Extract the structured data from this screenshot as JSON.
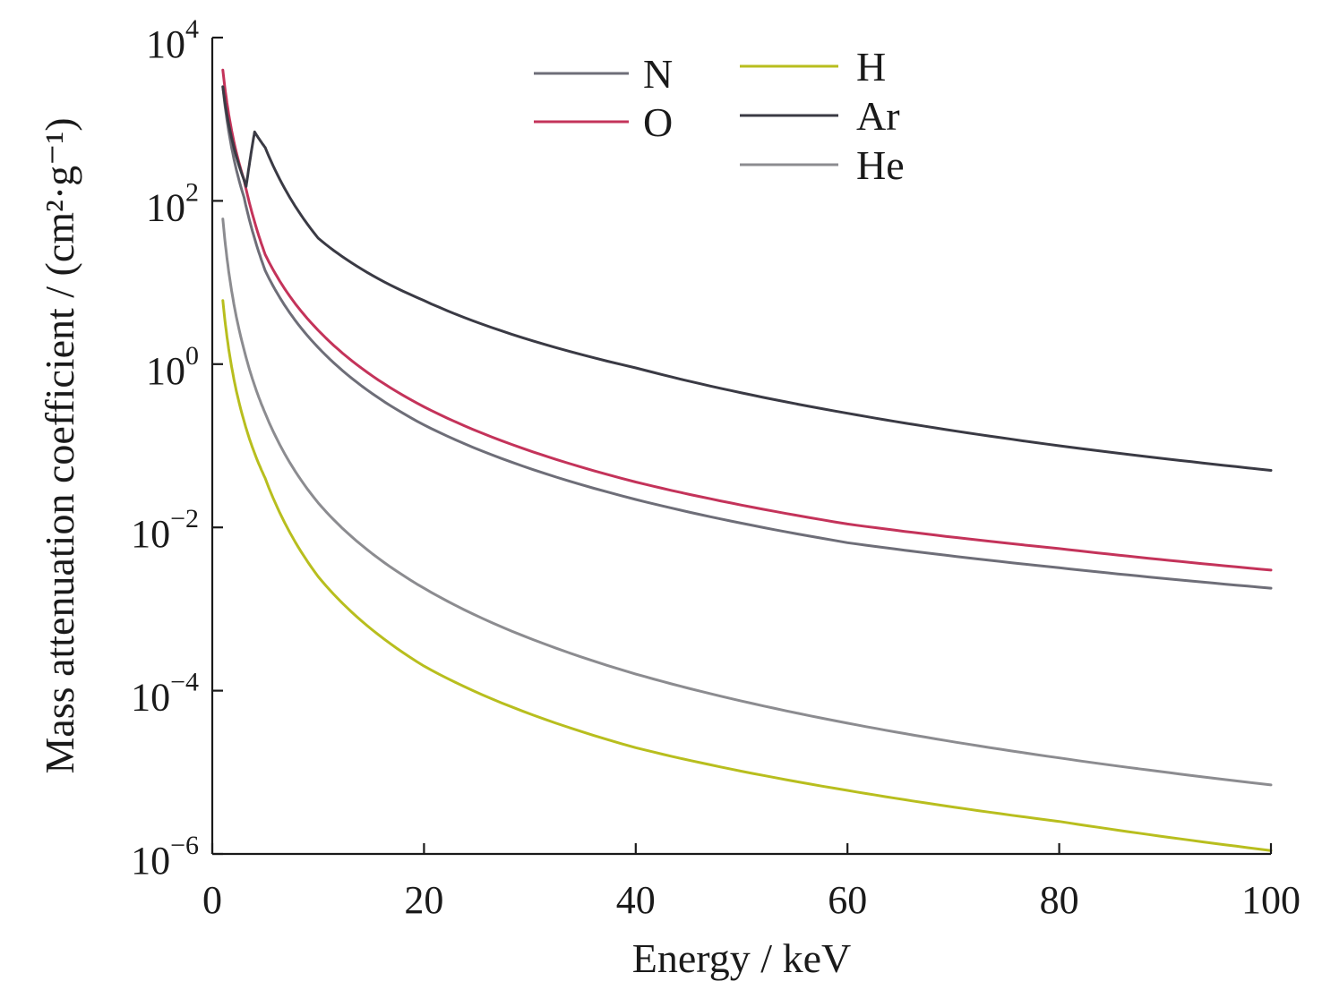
{
  "chart_data": {
    "type": "line",
    "title": "",
    "xlabel": "Energy / keV",
    "ylabel": "Mass attenuation coefficient / (cm²·g⁻¹)",
    "xlim": [
      0,
      100
    ],
    "ylim": [
      1e-06,
      10000.0
    ],
    "yscale": "log",
    "grid": false,
    "legend_position": "top",
    "x_ticks": [
      "0",
      "20",
      "40",
      "60",
      "80",
      "100"
    ],
    "y_ticks": [
      {
        "base": "10",
        "exp": "−6",
        "value": 1e-06
      },
      {
        "base": "10",
        "exp": "−4",
        "value": 0.0001
      },
      {
        "base": "10",
        "exp": "−2",
        "value": 0.01
      },
      {
        "base": "10",
        "exp": "0",
        "value": 1
      },
      {
        "base": "10",
        "exp": "2",
        "value": 100
      },
      {
        "base": "10",
        "exp": "4",
        "value": 10000
      }
    ],
    "series": [
      {
        "name": "N",
        "color": "#6e6e78",
        "x": [
          1,
          3,
          5,
          10,
          20,
          40,
          60,
          80,
          100
        ],
        "y": [
          2500,
          110,
          14,
          1.6,
          0.18,
          0.022,
          0.0065,
          0.0032,
          0.0018
        ]
      },
      {
        "name": "O",
        "color": "#c4335a",
        "x": [
          1,
          3,
          5,
          10,
          20,
          40,
          60,
          80,
          100
        ],
        "y": [
          4000,
          180,
          22,
          2.6,
          0.3,
          0.036,
          0.011,
          0.0055,
          0.003
        ]
      },
      {
        "name": "H",
        "color": "#b8be1e",
        "x": [
          1,
          3,
          5,
          10,
          20,
          40,
          60,
          80,
          100
        ],
        "y": [
          6,
          0.2,
          0.04,
          0.0025,
          0.0002,
          2e-05,
          6e-06,
          2.5e-06,
          1.1e-06
        ]
      },
      {
        "name": "Ar",
        "color": "#3a3a44",
        "x": [
          1,
          3,
          3.2,
          4,
          5,
          10,
          20,
          40,
          60,
          80,
          100
        ],
        "y": [
          2500,
          180,
          150,
          700,
          450,
          35,
          6,
          0.9,
          0.25,
          0.1,
          0.05
        ]
      },
      {
        "name": "He",
        "color": "#8c8c90",
        "x": [
          1,
          3,
          5,
          10,
          20,
          40,
          60,
          80,
          100
        ],
        "y": [
          60,
          1.5,
          0.25,
          0.02,
          0.0018,
          0.00016,
          4e-05,
          1.5e-05,
          7e-06
        ]
      }
    ]
  }
}
